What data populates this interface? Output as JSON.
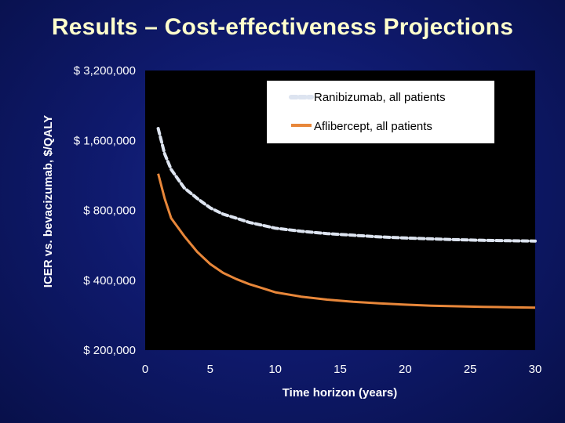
{
  "title": "Results – Cost-effectiveness Projections",
  "chart_data": {
    "type": "line",
    "xlabel": "Time horizon (years)",
    "ylabel": "ICER vs. bevacizumab, $/QALY",
    "y_scale": "log",
    "xlim": [
      0,
      30
    ],
    "ylim": [
      200000,
      3200000
    ],
    "x_ticks": [
      "0",
      "5",
      "10",
      "15",
      "20",
      "25",
      "30"
    ],
    "y_ticks": [
      {
        "value": 3200000,
        "label": "$ 3,200,000"
      },
      {
        "value": 1600000,
        "label": "$ 1,600,000"
      },
      {
        "value": 800000,
        "label": "$ 800,000"
      },
      {
        "value": 400000,
        "label": "$ 400,000"
      },
      {
        "value": 200000,
        "label": "$ 200,000"
      }
    ],
    "series": [
      {
        "name": "Ranibizumab, all patients",
        "color": "#dde4f0",
        "style": "dashed",
        "x": [
          1,
          1.5,
          2,
          3,
          4,
          5,
          6,
          7,
          8,
          9,
          10,
          12,
          14,
          16,
          18,
          20,
          22,
          24,
          26,
          28,
          30
        ],
        "y": [
          1800000,
          1400000,
          1200000,
          1000000,
          900000,
          820000,
          770000,
          740000,
          710000,
          690000,
          670000,
          650000,
          635000,
          625000,
          615000,
          608000,
          603000,
          598000,
          594000,
          592000,
          590000
        ]
      },
      {
        "name": "Aflibercept, all patients",
        "color": "#e8873a",
        "style": "solid",
        "x": [
          1,
          1.5,
          2,
          3,
          4,
          5,
          6,
          7,
          8,
          9,
          10,
          12,
          14,
          16,
          18,
          20,
          22,
          24,
          26,
          28,
          30
        ],
        "y": [
          1150000,
          900000,
          740000,
          620000,
          530000,
          470000,
          430000,
          405000,
          385000,
          370000,
          355000,
          340000,
          330000,
          323000,
          318000,
          314000,
          311000,
          309000,
          307000,
          306000,
          305000
        ]
      }
    ],
    "legend_position": "top-right"
  }
}
